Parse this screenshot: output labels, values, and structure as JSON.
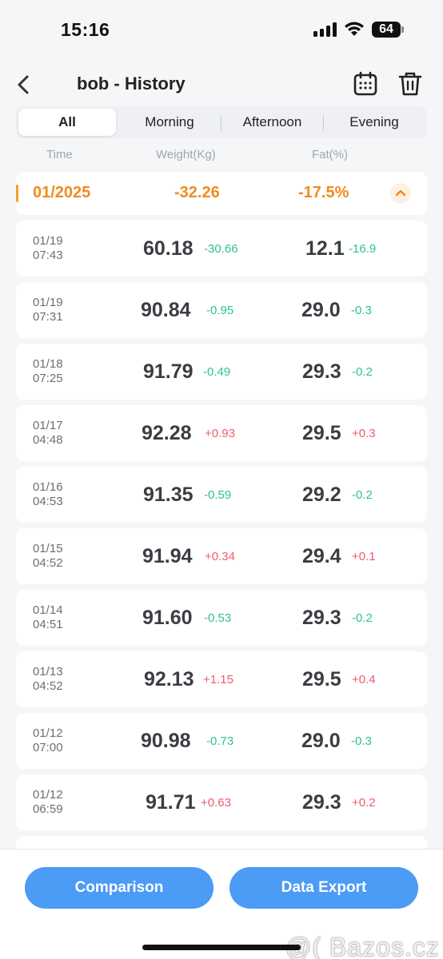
{
  "status_bar": {
    "time": "15:16",
    "battery": "64"
  },
  "header": {
    "title": "bob - History"
  },
  "tabs": [
    {
      "label": "All",
      "active": true
    },
    {
      "label": "Morning",
      "active": false
    },
    {
      "label": "Afternoon",
      "active": false
    },
    {
      "label": "Evening",
      "active": false
    }
  ],
  "columns": {
    "time": "Time",
    "weight": "Weight(Kg)",
    "fat": "Fat(%)"
  },
  "month": {
    "label": "01/2025",
    "weight_change": "-32.26",
    "fat_change": "-17.5%"
  },
  "records": [
    {
      "date": "01/19",
      "time": "07:43",
      "weight": "60.18",
      "weight_delta": "-30.66",
      "fat": "12.1",
      "fat_delta": "-16.9"
    },
    {
      "date": "01/19",
      "time": "07:31",
      "weight": "90.84",
      "weight_delta": "-0.95",
      "fat": "29.0",
      "fat_delta": "-0.3"
    },
    {
      "date": "01/18",
      "time": "07:25",
      "weight": "91.79",
      "weight_delta": "-0.49",
      "fat": "29.3",
      "fat_delta": "-0.2"
    },
    {
      "date": "01/17",
      "time": "04:48",
      "weight": "92.28",
      "weight_delta": "+0.93",
      "fat": "29.5",
      "fat_delta": "+0.3"
    },
    {
      "date": "01/16",
      "time": "04:53",
      "weight": "91.35",
      "weight_delta": "-0.59",
      "fat": "29.2",
      "fat_delta": "-0.2"
    },
    {
      "date": "01/15",
      "time": "04:52",
      "weight": "91.94",
      "weight_delta": "+0.34",
      "fat": "29.4",
      "fat_delta": "+0.1"
    },
    {
      "date": "01/14",
      "time": "04:51",
      "weight": "91.60",
      "weight_delta": "-0.53",
      "fat": "29.3",
      "fat_delta": "-0.2"
    },
    {
      "date": "01/13",
      "time": "04:52",
      "weight": "92.13",
      "weight_delta": "+1.15",
      "fat": "29.5",
      "fat_delta": "+0.4"
    },
    {
      "date": "01/12",
      "time": "07:00",
      "weight": "90.98",
      "weight_delta": "-0.73",
      "fat": "29.0",
      "fat_delta": "-0.3"
    },
    {
      "date": "01/12",
      "time": "06:59",
      "weight": "91.71",
      "weight_delta": "+0.63",
      "fat": "29.3",
      "fat_delta": "+0.2"
    }
  ],
  "bottom": {
    "comparison": "Comparison",
    "export": "Data Export"
  },
  "watermark": "@( Bazos.cz",
  "colors": {
    "accent_orange": "#f28a1e",
    "decrease": "#2fc09a",
    "increase": "#ef5a6e",
    "button_blue": "#4c9bf5"
  }
}
